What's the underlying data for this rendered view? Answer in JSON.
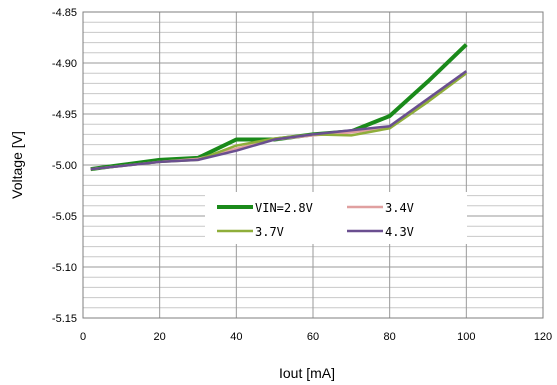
{
  "chart_data": {
    "type": "line",
    "title": "",
    "xlabel": "Iout [mA]",
    "ylabel": "Voltage  [V]",
    "xlim": [
      0,
      120
    ],
    "ylim": [
      -5.15,
      -4.85
    ],
    "x_ticks": [
      0,
      20,
      40,
      60,
      80,
      100,
      120
    ],
    "x_tick_labels": [
      "0",
      "20",
      "40",
      "60",
      "80",
      "100",
      "120"
    ],
    "y_ticks": [
      -4.85,
      -4.9,
      -4.95,
      -5.0,
      -5.05,
      -5.1,
      -5.15
    ],
    "y_tick_labels": [
      "-4.85",
      "-4.90",
      "-4.95",
      "-5.00",
      "-5.05",
      "-5.10",
      "-5.15"
    ],
    "grid": true,
    "legend_position": "center-right",
    "series": [
      {
        "name": "VIN=2.8V",
        "color": "#1a8a1a",
        "x": [
          2,
          10,
          20,
          30,
          40,
          50,
          60,
          70,
          80,
          90,
          100
        ],
        "y": [
          -5.004,
          -5.0,
          -4.995,
          -4.993,
          -4.975,
          -4.975,
          -4.97,
          -4.967,
          -4.952,
          -4.918,
          -4.882
        ]
      },
      {
        "name": "3.4V",
        "color": "#e0a0a0",
        "x": [
          2,
          10,
          20,
          30,
          40,
          50,
          60,
          70,
          80,
          90,
          100
        ],
        "y": [
          -5.004,
          -5.001,
          -4.997,
          -4.994,
          -4.984,
          -4.975,
          -4.971,
          -4.968,
          -4.963,
          -4.937,
          -4.91
        ]
      },
      {
        "name": "3.7V",
        "color": "#8fae3a",
        "x": [
          2,
          10,
          20,
          30,
          40,
          50,
          60,
          70,
          80,
          90,
          100
        ],
        "y": [
          -5.004,
          -5.001,
          -4.997,
          -4.995,
          -4.981,
          -4.974,
          -4.97,
          -4.971,
          -4.964,
          -4.938,
          -4.91
        ]
      },
      {
        "name": "4.3V",
        "color": "#6a4f90",
        "x": [
          2,
          10,
          20,
          30,
          40,
          50,
          60,
          70,
          80,
          90,
          100
        ],
        "y": [
          -5.004,
          -5.001,
          -4.997,
          -4.995,
          -4.986,
          -4.975,
          -4.97,
          -4.966,
          -4.962,
          -4.935,
          -4.908
        ]
      }
    ]
  }
}
